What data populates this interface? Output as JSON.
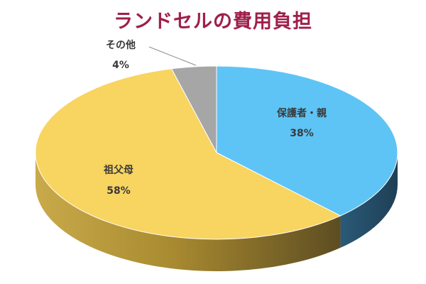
{
  "chart_data": {
    "type": "pie",
    "title": "ランドセルの費用負担",
    "slices": [
      {
        "name": "保護者・親",
        "value": 38,
        "label": "38%",
        "color": "#5ec4f6",
        "side_color": "#24506b"
      },
      {
        "name": "祖父母",
        "value": 58,
        "label": "58%",
        "color": "#f8d460",
        "side_color": "#b89a3c"
      },
      {
        "name": "その他",
        "value": 4,
        "label": "4%",
        "color": "#a6a6a6",
        "side_color": "#6d6d6d"
      }
    ],
    "legend": "none",
    "three_d": true
  }
}
